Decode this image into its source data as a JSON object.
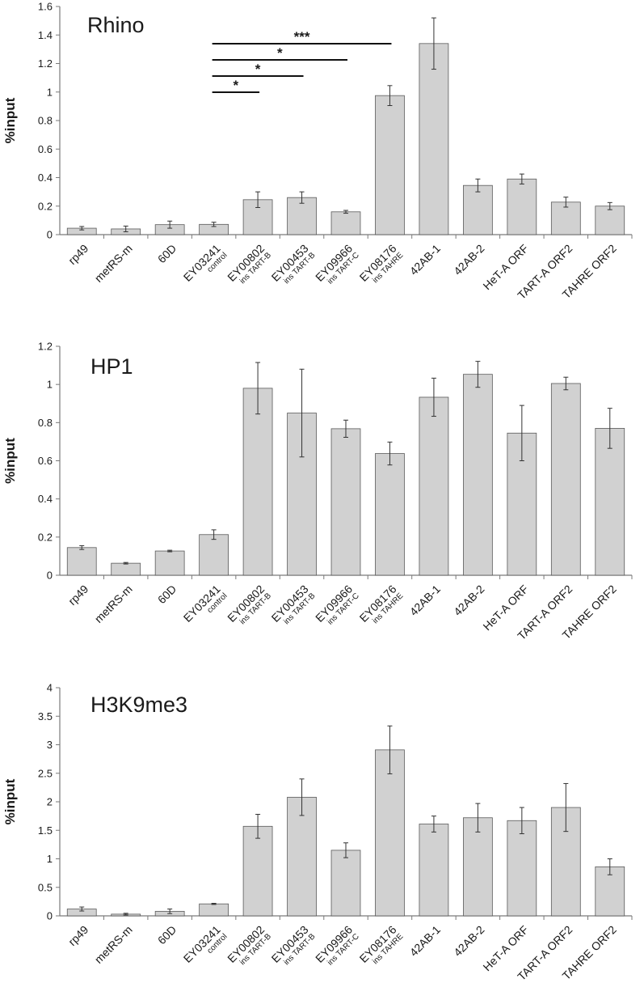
{
  "chart_data": [
    {
      "type": "bar",
      "title": "Rhino",
      "ylabel": "%input",
      "xlabel": "",
      "ylim": [
        0,
        1.6
      ],
      "yticks": [
        "0",
        "0.2",
        "0.4",
        "0.6",
        "0.8",
        "1",
        "1.2",
        "1.4",
        "1.6"
      ],
      "grid": false,
      "categories": [
        {
          "name": "rp49",
          "sub": ""
        },
        {
          "name": "metRS-m",
          "sub": ""
        },
        {
          "name": "60D",
          "sub": ""
        },
        {
          "name": "EY03241",
          "sub": "control"
        },
        {
          "name": "EY00802",
          "sub": "ins TART-B"
        },
        {
          "name": "EY00453",
          "sub": "ins TART-B"
        },
        {
          "name": "EY09966",
          "sub": "ins TART-C"
        },
        {
          "name": "EY08176",
          "sub": "ins TAHRE"
        },
        {
          "name": "42AB-1",
          "sub": ""
        },
        {
          "name": "42AB-2",
          "sub": ""
        },
        {
          "name": "HeT-A ORF",
          "sub": ""
        },
        {
          "name": "TART-A ORF2",
          "sub": ""
        },
        {
          "name": "TAHRE ORF2",
          "sub": ""
        }
      ],
      "values": [
        0.045,
        0.04,
        0.07,
        0.072,
        0.245,
        0.26,
        0.16,
        0.975,
        1.34,
        0.345,
        0.39,
        0.228,
        0.2
      ],
      "errors": [
        0.012,
        0.02,
        0.025,
        0.015,
        0.055,
        0.04,
        0.01,
        0.07,
        0.18,
        0.045,
        0.035,
        0.035,
        0.025
      ],
      "significance": [
        {
          "from": 3,
          "to": 7,
          "label": "***"
        },
        {
          "from": 3,
          "to": 6,
          "label": "*"
        },
        {
          "from": 3,
          "to": 5,
          "label": "*"
        },
        {
          "from": 3,
          "to": 4,
          "label": "*"
        }
      ]
    },
    {
      "type": "bar",
      "title": "HP1",
      "ylabel": "%input",
      "xlabel": "",
      "ylim": [
        0,
        1.2
      ],
      "yticks": [
        "0",
        "0.2",
        "0.4",
        "0.6",
        "0.8",
        "1",
        "1.2"
      ],
      "grid": false,
      "categories": [
        {
          "name": "rp49",
          "sub": ""
        },
        {
          "name": "metRS-m",
          "sub": ""
        },
        {
          "name": "60D",
          "sub": ""
        },
        {
          "name": "EY03241",
          "sub": "control"
        },
        {
          "name": "EY00802",
          "sub": "ins TART-B"
        },
        {
          "name": "EY00453",
          "sub": "ins TART-B"
        },
        {
          "name": "EY09966",
          "sub": "ins TART-C"
        },
        {
          "name": "EY08176",
          "sub": "ins TAHRE"
        },
        {
          "name": "42AB-1",
          "sub": ""
        },
        {
          "name": "42AB-2",
          "sub": ""
        },
        {
          "name": "HeT-A ORF",
          "sub": ""
        },
        {
          "name": "TART-A ORF2",
          "sub": ""
        },
        {
          "name": "TAHRE ORF2",
          "sub": ""
        }
      ],
      "values": [
        0.145,
        0.063,
        0.127,
        0.213,
        0.98,
        0.85,
        0.768,
        0.638,
        0.933,
        1.053,
        0.745,
        1.005,
        0.77
      ],
      "errors": [
        0.01,
        0.004,
        0.004,
        0.025,
        0.135,
        0.23,
        0.045,
        0.06,
        0.1,
        0.068,
        0.145,
        0.033,
        0.105
      ],
      "significance": []
    },
    {
      "type": "bar",
      "title": "H3K9me3",
      "ylabel": "%input",
      "xlabel": "",
      "ylim": [
        0,
        4
      ],
      "yticks": [
        "0",
        "0.5",
        "1",
        "1.5",
        "2",
        "2.5",
        "3",
        "3.5",
        "4"
      ],
      "grid": false,
      "categories": [
        {
          "name": "rp49",
          "sub": ""
        },
        {
          "name": "metRS-m",
          "sub": ""
        },
        {
          "name": "60D",
          "sub": ""
        },
        {
          "name": "EY03241",
          "sub": "control"
        },
        {
          "name": "EY00802",
          "sub": "ins TART-B"
        },
        {
          "name": "EY00453",
          "sub": "ins TART-B"
        },
        {
          "name": "EY09966",
          "sub": "ins TART-C"
        },
        {
          "name": "EY08176",
          "sub": "ins TAHRE"
        },
        {
          "name": "42AB-1",
          "sub": ""
        },
        {
          "name": "42AB-2",
          "sub": ""
        },
        {
          "name": "HeT-A ORF",
          "sub": ""
        },
        {
          "name": "TART-A ORF2",
          "sub": ""
        },
        {
          "name": "TAHRE ORF2",
          "sub": ""
        }
      ],
      "values": [
        0.12,
        0.03,
        0.08,
        0.21,
        1.57,
        2.08,
        1.15,
        2.91,
        1.61,
        1.72,
        1.67,
        1.9,
        0.86
      ],
      "errors": [
        0.035,
        0.015,
        0.04,
        0.01,
        0.21,
        0.32,
        0.13,
        0.42,
        0.14,
        0.25,
        0.23,
        0.42,
        0.14
      ],
      "significance": []
    }
  ],
  "colors": {
    "bar_fill": "#d1d1d1",
    "bar_stroke": "#5a5a5a",
    "axis": "#7a7a7a",
    "text": "#1a1a1a"
  }
}
